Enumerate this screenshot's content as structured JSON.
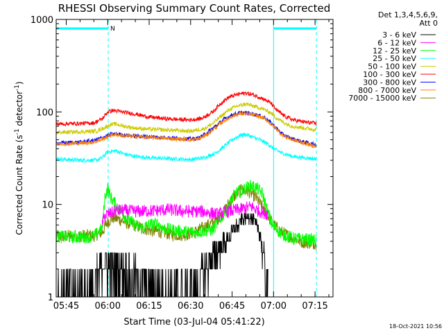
{
  "chart_data": {
    "type": "line",
    "title": "RHESSI Observing Summary Count Rates, Corrected",
    "xlabel": "Start Time (03-Jul-04 05:41:22)",
    "ylabel_parts": [
      "Corrected Count Rate (s",
      "-1",
      " detector",
      "-1",
      ")"
    ],
    "y_scale": "log",
    "ylim": [
      1,
      1000
    ],
    "y_ticks": [
      {
        "v": 1,
        "label": "1"
      },
      {
        "v": 10,
        "label": "10"
      },
      {
        "v": 100,
        "label": "100"
      },
      {
        "v": 1000,
        "label": "1000"
      }
    ],
    "x_range_min": [
      41.37,
      81.5
    ],
    "x_ticks": [
      {
        "m": 45,
        "label": "05:45"
      },
      {
        "m": 60,
        "label": "06:00"
      },
      {
        "m": 75,
        "label": "06:15"
      },
      {
        "m": 90,
        "label": "06:30"
      },
      {
        "m": 105,
        "label": "06:45"
      },
      {
        "m": 120,
        "label": "07:00"
      },
      {
        "m": 135,
        "label": "07:15"
      }
    ],
    "legend_header": [
      "Det 1,3,4,5,6,9,",
      "Att 0"
    ],
    "legend_position": "right",
    "night_bars": [
      {
        "from": 41.37,
        "to": 60.2
      },
      {
        "from": 120.0,
        "to": 135.5
      }
    ],
    "night_marker": "N",
    "saa_lines": [
      41.37,
      60.2,
      120.0,
      135.5
    ],
    "series": [
      {
        "name": "3 - 6 keV",
        "color": "#000000",
        "mode": "quantized",
        "points": [
          [
            41.4,
            1
          ],
          [
            55,
            1
          ],
          [
            56,
            1.5
          ],
          [
            58,
            2.4
          ],
          [
            60,
            2.2
          ],
          [
            62,
            2
          ],
          [
            65,
            2.1
          ],
          [
            70,
            1.5
          ],
          [
            75,
            1.2
          ],
          [
            80,
            1
          ],
          [
            92,
            1
          ],
          [
            95,
            2
          ],
          [
            97,
            2.5
          ],
          [
            100,
            3.2
          ],
          [
            104,
            4.5
          ],
          [
            108,
            6.5
          ],
          [
            111,
            7.5
          ],
          [
            113,
            6.5
          ],
          [
            115,
            5
          ],
          [
            116,
            3.3
          ],
          [
            118,
            1
          ]
        ]
      },
      {
        "name": "6 - 12 keV",
        "color": "#ff00ff",
        "points": [
          [
            58,
            6.2
          ],
          [
            59,
            7.6
          ],
          [
            61,
            8
          ],
          [
            63,
            8.5
          ],
          [
            66,
            8.6
          ],
          [
            70,
            8.4
          ],
          [
            74,
            8.5
          ],
          [
            78,
            8.6
          ],
          [
            82,
            8.8
          ],
          [
            86,
            8.5
          ],
          [
            90,
            8.4
          ],
          [
            94,
            8.4
          ],
          [
            98,
            8
          ],
          [
            100,
            7.8
          ],
          [
            102,
            8.2
          ],
          [
            105,
            8.6
          ],
          [
            108,
            8.8
          ],
          [
            110,
            9.2
          ],
          [
            112,
            9.5
          ],
          [
            114,
            8.7
          ],
          [
            116,
            8.2
          ],
          [
            118,
            7.9
          ]
        ]
      },
      {
        "name": "12 - 25 keV",
        "color": "#00ff00",
        "points": [
          [
            41.4,
            4.5
          ],
          [
            50,
            4.4
          ],
          [
            55,
            4.5
          ],
          [
            58,
            5.5
          ],
          [
            59,
            12
          ],
          [
            60,
            15
          ],
          [
            61,
            12
          ],
          [
            64,
            9
          ],
          [
            67,
            7
          ],
          [
            70,
            6
          ],
          [
            72,
            5.5
          ],
          [
            75,
            6
          ],
          [
            78,
            6.2
          ],
          [
            80,
            5.5
          ],
          [
            85,
            5.2
          ],
          [
            90,
            5
          ],
          [
            92,
            5
          ],
          [
            95,
            5.2
          ],
          [
            98,
            5.3
          ],
          [
            100,
            6.5
          ],
          [
            102,
            8
          ],
          [
            104,
            10
          ],
          [
            106,
            13
          ],
          [
            108,
            14
          ],
          [
            110,
            15
          ],
          [
            112,
            16
          ],
          [
            114,
            15
          ],
          [
            116,
            13
          ],
          [
            118,
            8
          ],
          [
            119.5,
            6
          ],
          [
            123,
            4.8
          ],
          [
            127,
            4.3
          ],
          [
            131,
            4.2
          ],
          [
            135.5,
            4.1
          ]
        ]
      },
      {
        "name": "25 - 50 keV",
        "color": "#00ffff",
        "points": [
          [
            41.4,
            31
          ],
          [
            50,
            30
          ],
          [
            56,
            30
          ],
          [
            58,
            32
          ],
          [
            60,
            37
          ],
          [
            63,
            38
          ],
          [
            66,
            35
          ],
          [
            70,
            33
          ],
          [
            75,
            32
          ],
          [
            80,
            31.5
          ],
          [
            85,
            31
          ],
          [
            90,
            30.5
          ],
          [
            95,
            32
          ],
          [
            99,
            36
          ],
          [
            102,
            42
          ],
          [
            105,
            50
          ],
          [
            108,
            56
          ],
          [
            110,
            57
          ],
          [
            112,
            54
          ],
          [
            115,
            50
          ],
          [
            118,
            45
          ],
          [
            120,
            40
          ],
          [
            123,
            36
          ],
          [
            127,
            33
          ],
          [
            131,
            32
          ],
          [
            135.5,
            31
          ]
        ]
      },
      {
        "name": "50 - 100 keV",
        "color": "#cccc00",
        "points": [
          [
            41.4,
            60
          ],
          [
            50,
            61
          ],
          [
            56,
            62
          ],
          [
            59,
            68
          ],
          [
            61,
            73
          ],
          [
            63,
            74
          ],
          [
            66,
            70
          ],
          [
            70,
            67
          ],
          [
            75,
            65
          ],
          [
            80,
            64
          ],
          [
            85,
            63
          ],
          [
            90,
            62
          ],
          [
            95,
            66
          ],
          [
            98,
            75
          ],
          [
            101,
            90
          ],
          [
            104,
            106
          ],
          [
            107,
            116
          ],
          [
            110,
            122
          ],
          [
            113,
            115
          ],
          [
            116,
            108
          ],
          [
            119,
            98
          ],
          [
            121,
            86
          ],
          [
            124,
            76
          ],
          [
            127,
            70
          ],
          [
            131,
            67
          ],
          [
            135.5,
            64
          ]
        ]
      },
      {
        "name": "100 - 300 keV",
        "color": "#ff0000",
        "points": [
          [
            41.4,
            74
          ],
          [
            50,
            75
          ],
          [
            55,
            76
          ],
          [
            58,
            84
          ],
          [
            60,
            100
          ],
          [
            62,
            104
          ],
          [
            65,
            100
          ],
          [
            70,
            95
          ],
          [
            75,
            88
          ],
          [
            80,
            85
          ],
          [
            85,
            83
          ],
          [
            90,
            82
          ],
          [
            94,
            85
          ],
          [
            98,
            100
          ],
          [
            101,
            125
          ],
          [
            104,
            145
          ],
          [
            107,
            155
          ],
          [
            110,
            160
          ],
          [
            113,
            152
          ],
          [
            116,
            140
          ],
          [
            119,
            125
          ],
          [
            121,
            105
          ],
          [
            124,
            90
          ],
          [
            127,
            82
          ],
          [
            131,
            78
          ],
          [
            135.5,
            75
          ]
        ]
      },
      {
        "name": "300 - 800 keV",
        "color": "#0000ff",
        "points": [
          [
            41.4,
            46
          ],
          [
            50,
            47
          ],
          [
            55,
            49
          ],
          [
            59,
            54
          ],
          [
            61,
            57
          ],
          [
            63,
            58
          ],
          [
            66,
            56
          ],
          [
            70,
            55
          ],
          [
            75,
            54
          ],
          [
            80,
            53
          ],
          [
            85,
            52
          ],
          [
            90,
            51
          ],
          [
            93,
            52
          ],
          [
            96,
            60
          ],
          [
            99,
            70
          ],
          [
            102,
            83
          ],
          [
            105,
            93
          ],
          [
            108,
            98
          ],
          [
            111,
            97
          ],
          [
            114,
            93
          ],
          [
            117,
            86
          ],
          [
            120,
            72
          ],
          [
            123,
            58
          ],
          [
            126,
            52
          ],
          [
            130,
            48
          ],
          [
            135.5,
            44
          ]
        ]
      },
      {
        "name": "800 - 7000 keV",
        "color": "#ff8000",
        "points": [
          [
            41.4,
            45
          ],
          [
            50,
            46
          ],
          [
            55,
            47
          ],
          [
            59,
            52
          ],
          [
            61,
            56
          ],
          [
            63,
            57
          ],
          [
            66,
            55
          ],
          [
            70,
            54
          ],
          [
            75,
            53
          ],
          [
            80,
            52
          ],
          [
            85,
            51
          ],
          [
            90,
            50
          ],
          [
            93,
            51
          ],
          [
            96,
            57
          ],
          [
            99,
            68
          ],
          [
            102,
            80
          ],
          [
            105,
            90
          ],
          [
            108,
            96
          ],
          [
            111,
            95
          ],
          [
            114,
            91
          ],
          [
            117,
            84
          ],
          [
            120,
            70
          ],
          [
            123,
            57
          ],
          [
            126,
            51
          ],
          [
            130,
            47
          ],
          [
            135.5,
            42
          ]
        ]
      },
      {
        "name": "7000 - 15000 keV",
        "color": "#808000",
        "points": [
          [
            41.4,
            4.5
          ],
          [
            50,
            4.6
          ],
          [
            55,
            4.6
          ],
          [
            58,
            5
          ],
          [
            60,
            6.5
          ],
          [
            62,
            7.2
          ],
          [
            64,
            6.9
          ],
          [
            67,
            6.3
          ],
          [
            70,
            5.9
          ],
          [
            73,
            5.5
          ],
          [
            76,
            5.2
          ],
          [
            80,
            5
          ],
          [
            84,
            4.7
          ],
          [
            88,
            4.7
          ],
          [
            92,
            5.1
          ],
          [
            96,
            5.9
          ],
          [
            99,
            6.6
          ],
          [
            102,
            8.2
          ],
          [
            104,
            10.5
          ],
          [
            106,
            12.5
          ],
          [
            108,
            14
          ],
          [
            110,
            14.3
          ],
          [
            112,
            13.2
          ],
          [
            114,
            11.5
          ],
          [
            116,
            9.2
          ],
          [
            118,
            7.5
          ],
          [
            120,
            6
          ],
          [
            123,
            5
          ],
          [
            127,
            4.3
          ],
          [
            131,
            3.9
          ],
          [
            135.5,
            3.8
          ]
        ]
      }
    ]
  },
  "footer": {
    "timestamp": "18-Oct-2021 10:56"
  }
}
